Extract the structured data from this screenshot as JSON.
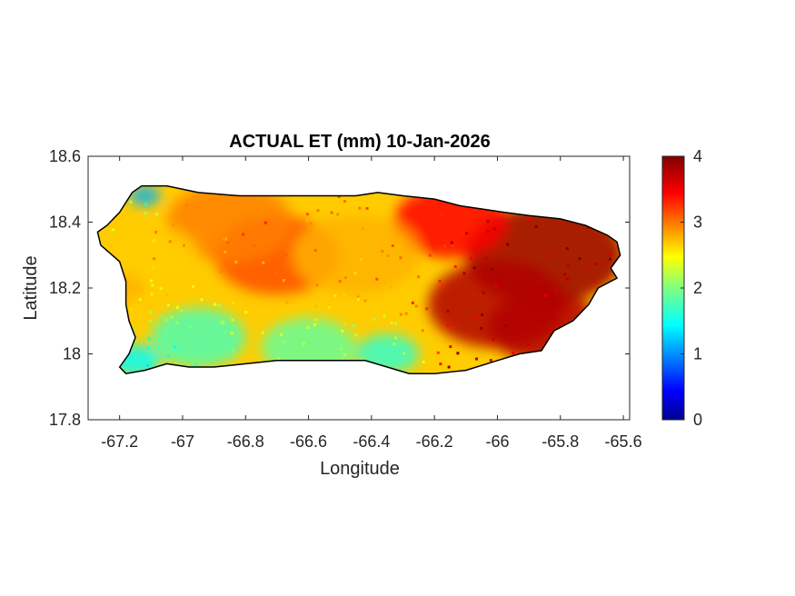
{
  "chart_data": {
    "type": "heatmap",
    "title": "ACTUAL ET (mm) 10-Jan-2026",
    "xlabel": "Longitude",
    "ylabel": "Latitude",
    "xlim": [
      -67.3,
      -65.58
    ],
    "ylim": [
      17.8,
      18.6
    ],
    "xticks": [
      -67.2,
      -67,
      -66.8,
      -66.6,
      -66.4,
      -66.2,
      -66,
      -65.8,
      -65.6
    ],
    "yticks": [
      17.8,
      18,
      18.2,
      18.4,
      18.6
    ],
    "xtick_labels": [
      "-67.2",
      "-67",
      "-66.8",
      "-66.6",
      "-66.4",
      "-66.2",
      "-66",
      "-65.8",
      "-65.6"
    ],
    "ytick_labels": [
      "17.8",
      "18",
      "18.2",
      "18.4",
      "18.6"
    ],
    "grid": false,
    "colorbar": {
      "colormap": "jet",
      "range": [
        0,
        4
      ],
      "ticks": [
        0,
        1,
        2,
        3,
        4
      ],
      "tick_labels": [
        "0",
        "1",
        "2",
        "3",
        "4"
      ]
    },
    "outline": [
      [
        -67.27,
        18.37
      ],
      [
        -67.24,
        18.39
      ],
      [
        -67.2,
        18.43
      ],
      [
        -67.16,
        18.49
      ],
      [
        -67.13,
        18.51
      ],
      [
        -67.05,
        18.51
      ],
      [
        -66.95,
        18.49
      ],
      [
        -66.82,
        18.48
      ],
      [
        -66.7,
        18.48
      ],
      [
        -66.58,
        18.48
      ],
      [
        -66.45,
        18.48
      ],
      [
        -66.38,
        18.49
      ],
      [
        -66.3,
        18.48
      ],
      [
        -66.2,
        18.47
      ],
      [
        -66.12,
        18.45
      ],
      [
        -66.05,
        18.44
      ],
      [
        -65.98,
        18.43
      ],
      [
        -65.9,
        18.42
      ],
      [
        -65.8,
        18.41
      ],
      [
        -65.72,
        18.39
      ],
      [
        -65.65,
        18.36
      ],
      [
        -65.62,
        18.34
      ],
      [
        -65.61,
        18.3
      ],
      [
        -65.64,
        18.26
      ],
      [
        -65.62,
        18.23
      ],
      [
        -65.68,
        18.2
      ],
      [
        -65.71,
        18.15
      ],
      [
        -65.76,
        18.1
      ],
      [
        -65.82,
        18.07
      ],
      [
        -65.86,
        18.01
      ],
      [
        -65.93,
        18.0
      ],
      [
        -66.0,
        17.98
      ],
      [
        -66.1,
        17.95
      ],
      [
        -66.2,
        17.94
      ],
      [
        -66.28,
        17.94
      ],
      [
        -66.35,
        17.96
      ],
      [
        -66.42,
        17.98
      ],
      [
        -66.5,
        17.98
      ],
      [
        -66.6,
        17.98
      ],
      [
        -66.7,
        17.98
      ],
      [
        -66.8,
        17.97
      ],
      [
        -66.9,
        17.96
      ],
      [
        -66.98,
        17.96
      ],
      [
        -67.05,
        17.97
      ],
      [
        -67.12,
        17.95
      ],
      [
        -67.18,
        17.94
      ],
      [
        -67.2,
        17.96
      ],
      [
        -67.17,
        18.0
      ],
      [
        -67.15,
        18.05
      ],
      [
        -67.17,
        18.1
      ],
      [
        -67.18,
        18.15
      ],
      [
        -67.18,
        18.22
      ],
      [
        -67.2,
        18.28
      ],
      [
        -67.26,
        18.33
      ],
      [
        -67.27,
        18.37
      ]
    ],
    "values_note": "",
    "hotspots": [
      {
        "x": -65.85,
        "y": 18.3,
        "value": 3.9,
        "r": 0.25
      },
      {
        "x": -66.0,
        "y": 18.15,
        "value": 3.8,
        "r": 0.22
      },
      {
        "x": -65.85,
        "y": 18.08,
        "value": 3.8,
        "r": 0.18
      },
      {
        "x": -66.15,
        "y": 18.4,
        "value": 3.5,
        "r": 0.18
      },
      {
        "x": -66.7,
        "y": 18.3,
        "value": 3.2,
        "r": 0.2
      },
      {
        "x": -66.85,
        "y": 18.4,
        "value": 3.0,
        "r": 0.2
      },
      {
        "x": -66.45,
        "y": 18.3,
        "value": 2.8,
        "r": 0.2
      },
      {
        "x": -67.1,
        "y": 18.3,
        "value": 2.7,
        "r": 0.15
      },
      {
        "x": -66.95,
        "y": 18.05,
        "value": 1.8,
        "r": 0.15
      },
      {
        "x": -67.15,
        "y": 17.98,
        "value": 1.5,
        "r": 0.08
      },
      {
        "x": -66.6,
        "y": 18.02,
        "value": 1.9,
        "r": 0.15
      },
      {
        "x": -66.35,
        "y": 18.0,
        "value": 1.7,
        "r": 0.1
      },
      {
        "x": -67.12,
        "y": 18.48,
        "value": 1.2,
        "r": 0.05
      },
      {
        "x": -67.2,
        "y": 18.2,
        "value": 2.8,
        "r": 0.08
      }
    ]
  }
}
